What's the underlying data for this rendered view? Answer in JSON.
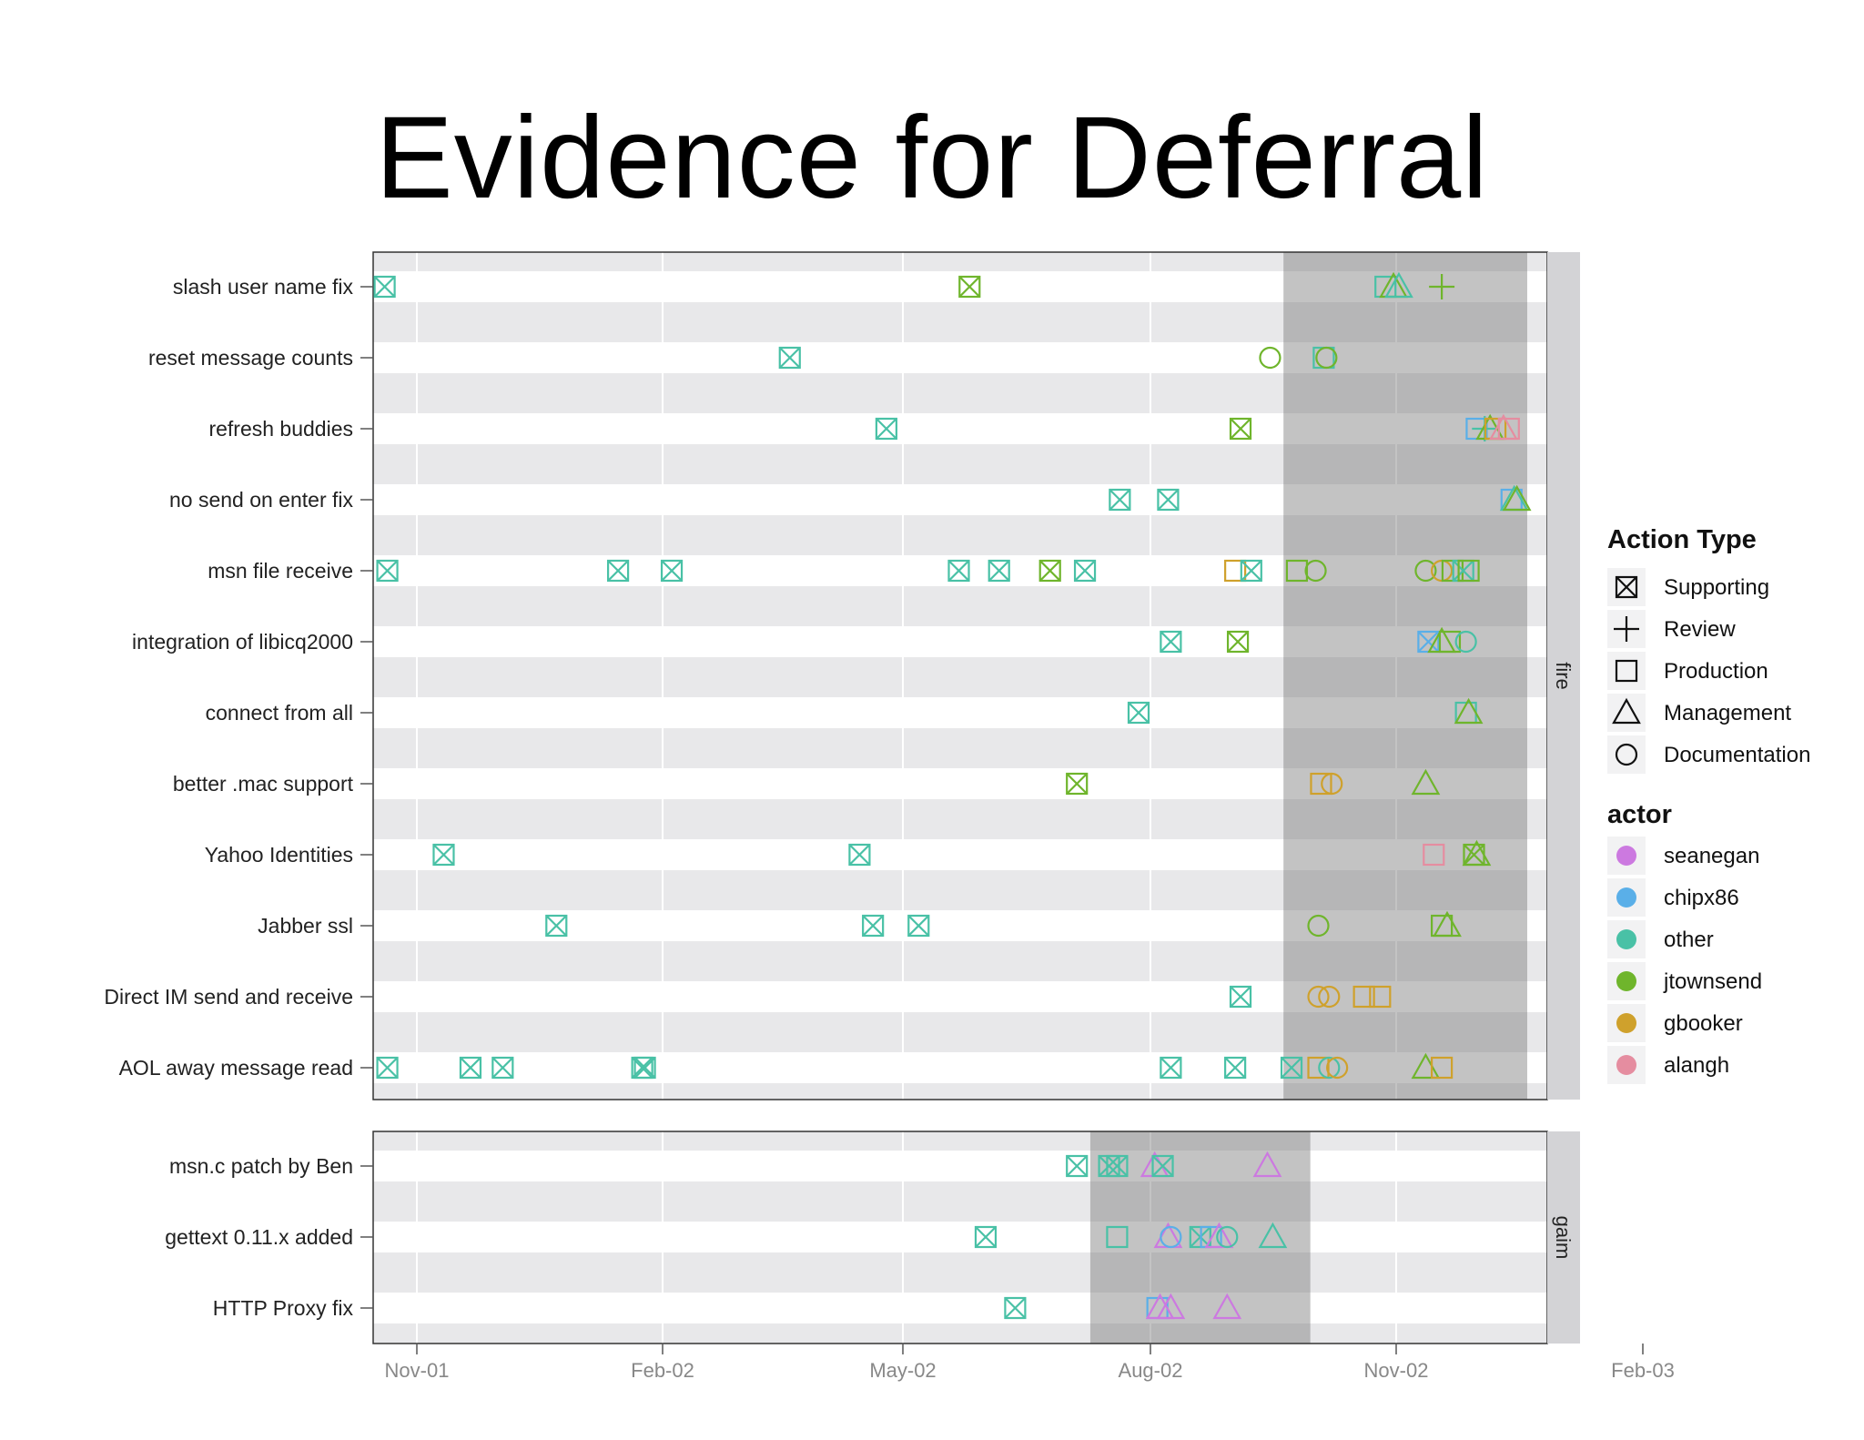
{
  "chart_data": {
    "type": "scatter",
    "title": "Evidence for Deferral",
    "x_axis": {
      "ticks": [
        "Nov-01",
        "Feb-02",
        "May-02",
        "Aug-02",
        "Nov-02",
        "Feb-03"
      ],
      "range": [
        "2001-10-15",
        "2003-02-01"
      ]
    },
    "legend": {
      "shape_title": "Action Type",
      "shapes": [
        {
          "label": "Supporting",
          "shape": "boxx"
        },
        {
          "label": "Review",
          "shape": "plus"
        },
        {
          "label": "Production",
          "shape": "square"
        },
        {
          "label": "Management",
          "shape": "triangle"
        },
        {
          "label": "Documentation",
          "shape": "circle"
        }
      ],
      "color_title": "actor",
      "colors": [
        {
          "label": "seanegan",
          "color": "#cc79e0"
        },
        {
          "label": "chipx86",
          "color": "#5aafe8"
        },
        {
          "label": "other",
          "color": "#49c1a6"
        },
        {
          "label": "jtownsend",
          "color": "#6fb52c"
        },
        {
          "label": "gbooker",
          "color": "#cfa12c"
        },
        {
          "label": "alangh",
          "color": "#e58da0"
        }
      ]
    },
    "panels": [
      {
        "strip": "fire",
        "shade": [
          "2002-09-20",
          "2002-12-20"
        ],
        "rows": [
          {
            "label": "slash user name fix",
            "points": [
              [
                "2001-10-20",
                "other",
                "boxx"
              ],
              [
                "2002-05-26",
                "jtownsend",
                "boxx"
              ],
              [
                "2002-10-28",
                "other",
                "square"
              ],
              [
                "2002-10-31",
                "jtownsend",
                "triangle"
              ],
              [
                "2002-11-02",
                "other",
                "triangle"
              ],
              [
                "2002-11-18",
                "jtownsend",
                "plus"
              ]
            ]
          },
          {
            "label": "reset message counts",
            "points": [
              [
                "2002-03-20",
                "other",
                "boxx"
              ],
              [
                "2002-09-15",
                "jtownsend",
                "circle"
              ],
              [
                "2002-10-05",
                "other",
                "square"
              ],
              [
                "2002-10-06",
                "jtownsend",
                "circle"
              ]
            ]
          },
          {
            "label": "refresh buddies",
            "points": [
              [
                "2002-04-25",
                "other",
                "boxx"
              ],
              [
                "2002-09-04",
                "jtownsend",
                "boxx"
              ],
              [
                "2002-12-01",
                "chipx86",
                "square"
              ],
              [
                "2002-12-04",
                "other",
                "plus"
              ],
              [
                "2002-12-06",
                "jtownsend",
                "triangle"
              ],
              [
                "2002-12-08",
                "gbooker",
                "square"
              ],
              [
                "2002-12-11",
                "alangh",
                "triangle"
              ],
              [
                "2002-12-13",
                "alangh",
                "square"
              ]
            ]
          },
          {
            "label": "no send on enter fix",
            "points": [
              [
                "2002-07-21",
                "other",
                "boxx"
              ],
              [
                "2002-08-08",
                "other",
                "boxx"
              ],
              [
                "2002-12-14",
                "chipx86",
                "square"
              ],
              [
                "2002-12-15",
                "other",
                "triangle"
              ],
              [
                "2002-12-16",
                "jtownsend",
                "triangle"
              ]
            ]
          },
          {
            "label": "msn file receive",
            "points": [
              [
                "2001-10-21",
                "other",
                "boxx"
              ],
              [
                "2002-01-15",
                "other",
                "boxx"
              ],
              [
                "2002-02-04",
                "other",
                "boxx"
              ],
              [
                "2002-05-22",
                "other",
                "boxx"
              ],
              [
                "2002-06-06",
                "other",
                "boxx"
              ],
              [
                "2002-06-25",
                "jtownsend",
                "boxx"
              ],
              [
                "2002-07-08",
                "other",
                "boxx"
              ],
              [
                "2002-09-02",
                "gbooker",
                "square"
              ],
              [
                "2002-09-08",
                "other",
                "boxx"
              ],
              [
                "2002-09-25",
                "jtownsend",
                "square"
              ],
              [
                "2002-10-02",
                "jtownsend",
                "circle"
              ],
              [
                "2002-11-12",
                "jtownsend",
                "circle"
              ],
              [
                "2002-11-18",
                "gbooker",
                "circle"
              ],
              [
                "2002-11-22",
                "jtownsend",
                "square"
              ],
              [
                "2002-11-26",
                "other",
                "boxx"
              ],
              [
                "2002-11-28",
                "jtownsend",
                "square"
              ]
            ]
          },
          {
            "label": "integration of libicq2000",
            "points": [
              [
                "2002-08-09",
                "other",
                "boxx"
              ],
              [
                "2002-09-03",
                "jtownsend",
                "boxx"
              ],
              [
                "2002-11-13",
                "chipx86",
                "boxx"
              ],
              [
                "2002-11-18",
                "jtownsend",
                "triangle"
              ],
              [
                "2002-11-21",
                "jtownsend",
                "square"
              ],
              [
                "2002-11-27",
                "other",
                "circle"
              ]
            ]
          },
          {
            "label": "connect from all",
            "points": [
              [
                "2002-07-28",
                "other",
                "boxx"
              ],
              [
                "2002-11-27",
                "other",
                "square"
              ],
              [
                "2002-11-28",
                "jtownsend",
                "triangle"
              ]
            ]
          },
          {
            "label": "better .mac support",
            "points": [
              [
                "2002-07-05",
                "jtownsend",
                "boxx"
              ],
              [
                "2002-10-04",
                "gbooker",
                "square"
              ],
              [
                "2002-10-08",
                "gbooker",
                "circle"
              ],
              [
                "2002-11-12",
                "jtownsend",
                "triangle"
              ]
            ]
          },
          {
            "label": "Yahoo Identities",
            "points": [
              [
                "2001-11-11",
                "other",
                "boxx"
              ],
              [
                "2002-04-15",
                "other",
                "boxx"
              ],
              [
                "2002-11-15",
                "alangh",
                "square"
              ],
              [
                "2002-11-30",
                "jtownsend",
                "boxx"
              ],
              [
                "2002-12-01",
                "jtownsend",
                "triangle"
              ]
            ]
          },
          {
            "label": "Jabber ssl",
            "points": [
              [
                "2001-12-23",
                "other",
                "boxx"
              ],
              [
                "2002-04-20",
                "other",
                "boxx"
              ],
              [
                "2002-05-07",
                "other",
                "boxx"
              ],
              [
                "2002-10-03",
                "jtownsend",
                "circle"
              ],
              [
                "2002-11-18",
                "jtownsend",
                "square"
              ],
              [
                "2002-11-20",
                "jtownsend",
                "triangle"
              ]
            ]
          },
          {
            "label": "Direct IM send and receive",
            "points": [
              [
                "2002-09-04",
                "other",
                "boxx"
              ],
              [
                "2002-10-03",
                "gbooker",
                "circle"
              ],
              [
                "2002-10-07",
                "gbooker",
                "circle"
              ],
              [
                "2002-10-20",
                "gbooker",
                "square"
              ],
              [
                "2002-10-26",
                "gbooker",
                "square"
              ]
            ]
          },
          {
            "label": "AOL away message read",
            "points": [
              [
                "2001-10-21",
                "other",
                "boxx"
              ],
              [
                "2001-11-21",
                "other",
                "boxx"
              ],
              [
                "2001-12-03",
                "other",
                "boxx"
              ],
              [
                "2002-01-24",
                "other",
                "boxx"
              ],
              [
                "2002-01-25",
                "other",
                "boxx"
              ],
              [
                "2002-08-09",
                "other",
                "boxx"
              ],
              [
                "2002-09-02",
                "other",
                "boxx"
              ],
              [
                "2002-09-23",
                "other",
                "boxx"
              ],
              [
                "2002-10-03",
                "gbooker",
                "square"
              ],
              [
                "2002-10-07",
                "other",
                "circle"
              ],
              [
                "2002-10-10",
                "gbooker",
                "circle"
              ],
              [
                "2002-11-12",
                "jtownsend",
                "triangle"
              ],
              [
                "2002-11-18",
                "gbooker",
                "square"
              ]
            ]
          }
        ]
      },
      {
        "strip": "gaim",
        "shade": [
          "2002-07-10",
          "2002-09-30"
        ],
        "rows": [
          {
            "label": "msn.c patch by Ben",
            "points": [
              [
                "2002-07-05",
                "other",
                "boxx"
              ],
              [
                "2002-07-17",
                "other",
                "boxx"
              ],
              [
                "2002-07-20",
                "other",
                "boxx"
              ],
              [
                "2002-08-03",
                "seanegan",
                "triangle"
              ],
              [
                "2002-08-06",
                "other",
                "boxx"
              ],
              [
                "2002-09-14",
                "seanegan",
                "triangle"
              ]
            ]
          },
          {
            "label": "gettext 0.11.x added",
            "points": [
              [
                "2002-06-01",
                "other",
                "boxx"
              ],
              [
                "2002-07-20",
                "other",
                "square"
              ],
              [
                "2002-08-08",
                "seanegan",
                "triangle"
              ],
              [
                "2002-08-09",
                "chipx86",
                "circle"
              ],
              [
                "2002-08-20",
                "other",
                "boxx"
              ],
              [
                "2002-08-24",
                "chipx86",
                "square"
              ],
              [
                "2002-08-27",
                "seanegan",
                "triangle"
              ],
              [
                "2002-08-30",
                "other",
                "circle"
              ],
              [
                "2002-09-16",
                "other",
                "triangle"
              ]
            ]
          },
          {
            "label": "HTTP Proxy fix",
            "points": [
              [
                "2002-06-12",
                "other",
                "boxx"
              ],
              [
                "2002-08-04",
                "chipx86",
                "square"
              ],
              [
                "2002-08-05",
                "seanegan",
                "triangle"
              ],
              [
                "2002-08-09",
                "seanegan",
                "triangle"
              ],
              [
                "2002-08-30",
                "seanegan",
                "triangle"
              ]
            ]
          }
        ]
      }
    ]
  }
}
